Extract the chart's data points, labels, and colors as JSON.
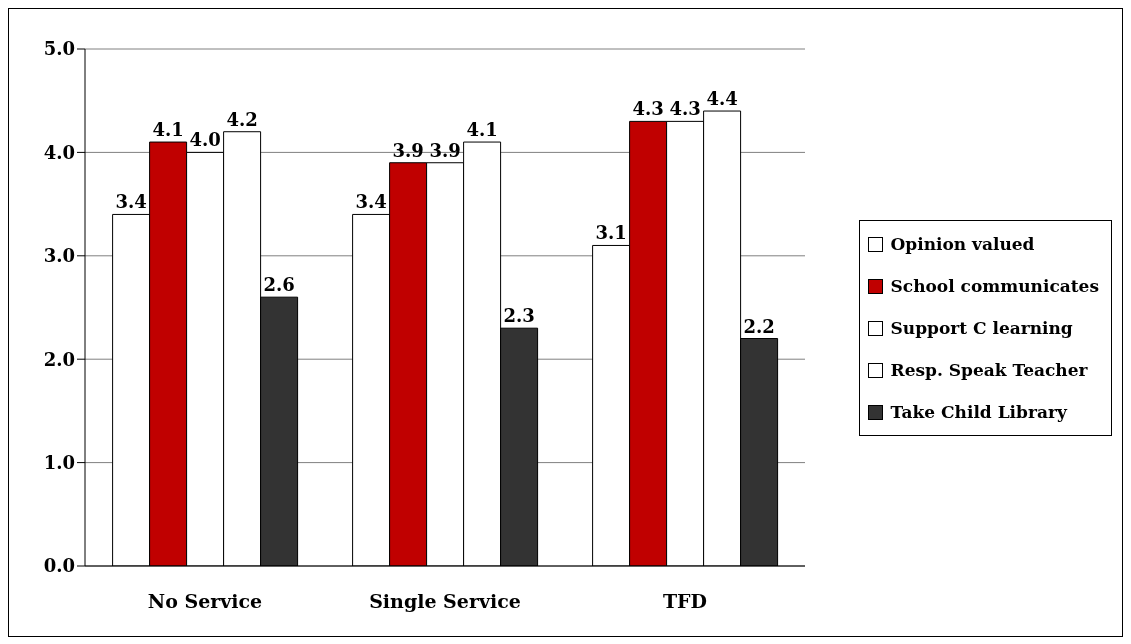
{
  "chart_data": {
    "type": "bar",
    "categories": [
      "No Service",
      "Single Service",
      "TFD"
    ],
    "series": [
      {
        "name": "Opinion valued",
        "color": "#ffffff",
        "values": [
          3.4,
          3.4,
          3.1
        ],
        "value_labels": [
          "3.4",
          "3.4",
          "3.1"
        ]
      },
      {
        "name": "School communicates",
        "color": "#c00000",
        "values": [
          4.1,
          3.9,
          4.3
        ],
        "value_labels": [
          "4.1",
          "3.9",
          "4.3"
        ]
      },
      {
        "name": "Support C learning",
        "color": "#ffffff",
        "values": [
          4.0,
          3.9,
          4.3
        ],
        "value_labels": [
          "4.0",
          "3.9",
          "4.3"
        ]
      },
      {
        "name": "Resp. Speak Teacher",
        "color": "#ffffff",
        "values": [
          4.2,
          4.1,
          4.4
        ],
        "value_labels": [
          "4.2",
          "4.1",
          "4.4"
        ]
      },
      {
        "name": "Take Child Library",
        "color": "#333333",
        "values": [
          2.6,
          2.3,
          2.2
        ],
        "value_labels": [
          "2.6",
          "2.3",
          "2.2"
        ]
      }
    ],
    "ylim": [
      0,
      5
    ],
    "yticks": [
      {
        "value": 0,
        "label": "0.0"
      },
      {
        "value": 1,
        "label": "1.0"
      },
      {
        "value": 2,
        "label": "2.0"
      },
      {
        "value": 3,
        "label": "3.0"
      },
      {
        "value": 4,
        "label": "4.0"
      },
      {
        "value": 5,
        "label": "5.0"
      }
    ],
    "grid": "y",
    "legend": "right"
  }
}
